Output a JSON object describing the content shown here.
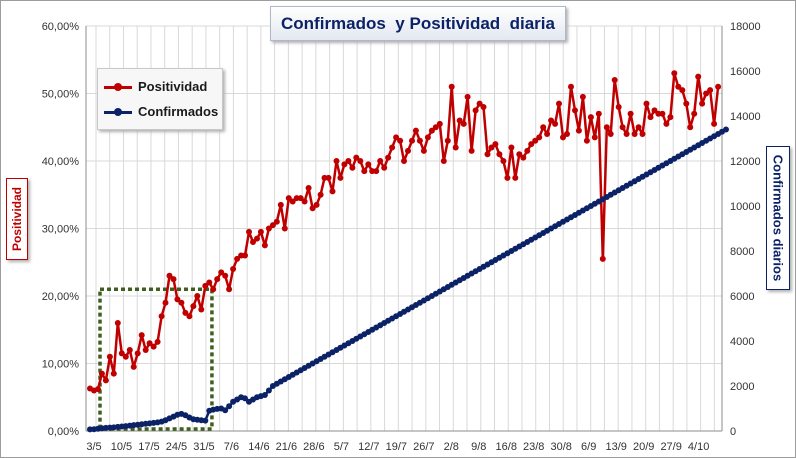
{
  "chart_data": {
    "type": "line",
    "title": "Confirmados  y Positividad  diaria",
    "ylabel_left": "Positividad",
    "ylabel_right": "Confirmados diarios",
    "xlabel": "",
    "legend_position": "top-left",
    "grid": true,
    "x_ticks": [
      "3/5",
      "10/5",
      "17/5",
      "24/5",
      "31/5",
      "7/6",
      "14/6",
      "21/6",
      "28/6",
      "5/7",
      "12/7",
      "19/7",
      "26/7",
      "2/8",
      "9/8",
      "16/8",
      "23/8",
      "30/8",
      "6/9",
      "13/9",
      "20/9",
      "27/9",
      "4/10"
    ],
    "y_left_ticks": [
      "0,00%",
      "10,00%",
      "20,00%",
      "30,00%",
      "40,00%",
      "50,00%",
      "60,00%"
    ],
    "y_right_ticks": [
      "0",
      "2000",
      "4000",
      "6000",
      "8000",
      "10000",
      "12000",
      "14000",
      "16000",
      "18000"
    ],
    "ylim_left": [
      0,
      60
    ],
    "ylim_right": [
      0,
      18000
    ],
    "x_start_date": "2020-05-03",
    "x_interval_days": 7,
    "annotation": "dotted green rectangle highlighting 3/5 to 31/5",
    "series": [
      {
        "name": "Positividad",
        "axis": "left",
        "color": "#c00000",
        "values": [
          6.3,
          6.0,
          6.2,
          8.5,
          7.5,
          11.0,
          8.5,
          16.0,
          11.5,
          11.0,
          12.0,
          9.5,
          11.5,
          14.2,
          12.0,
          13.0,
          12.5,
          13.2,
          17.0,
          19.0,
          23.0,
          22.5,
          19.5,
          19.0,
          17.5,
          17.0,
          18.5,
          20.0,
          18.0,
          21.5,
          22.0,
          21.0,
          22.5,
          23.5,
          23.0,
          21.0,
          24.0,
          25.5,
          26.0,
          26.0,
          29.5,
          28.0,
          28.5,
          29.5,
          27.5,
          30.0,
          30.5,
          31.0,
          33.5,
          30.0,
          34.5,
          34.0,
          34.5,
          34.5,
          34.0,
          36.0,
          33.0,
          33.5,
          35.0,
          37.5,
          37.5,
          35.5,
          40.0,
          37.5,
          39.5,
          40.0,
          39.0,
          40.5,
          40.0,
          38.5,
          39.5,
          38.5,
          38.5,
          40.0,
          39.0,
          40.5,
          42.0,
          43.5,
          43.0,
          40.0,
          41.5,
          43.0,
          44.5,
          43.0,
          41.5,
          43.5,
          44.5,
          45.0,
          45.5,
          40.0,
          43.0,
          51.0,
          42.0,
          46.0,
          45.5,
          49.5,
          41.5,
          47.5,
          48.5,
          48.0,
          41.0,
          42.0,
          42.5,
          41.0,
          40.0,
          37.5,
          42.0,
          37.5,
          41.0,
          40.5,
          41.5,
          42.5,
          43.0,
          43.5,
          45.0,
          44.0,
          46.0,
          45.5,
          48.5,
          43.5,
          44.0,
          51.0,
          47.5,
          44.5,
          49.5,
          43.0,
          46.5,
          43.5,
          47.0,
          25.5,
          45.0,
          44.0,
          52.0,
          48.0,
          45.0,
          44.0,
          47.0,
          44.0,
          45.0,
          44.0,
          48.5,
          46.5,
          47.5,
          47.0,
          47.0,
          45.5,
          46.5,
          53.0,
          51.0,
          50.5,
          48.5,
          45.0,
          47.0,
          52.5,
          48.5,
          50.0,
          50.5,
          45.5,
          51.0
        ]
      },
      {
        "name": "Confirmados",
        "axis": "right",
        "color": "#0c2266",
        "values": [
          70,
          80,
          100,
          120,
          140,
          150,
          160,
          180,
          200,
          220,
          240,
          260,
          280,
          300,
          320,
          340,
          360,
          380,
          420,
          480,
          560,
          640,
          720,
          760,
          700,
          600,
          520,
          500,
          480,
          460,
          900,
          950,
          980,
          1000,
          920,
          1100,
          1300,
          1400,
          1500,
          1450,
          1300,
          1400,
          1500,
          1550,
          1600,
          1800,
          2000,
          2100,
          2200,
          2300,
          2400,
          2500,
          2600,
          2700,
          2800,
          2900,
          3000,
          3100,
          3200,
          3300,
          3400,
          3500,
          3600,
          3700,
          3800,
          3900,
          4000,
          4100,
          4200,
          4300,
          4400,
          4500,
          4600,
          4700,
          4800,
          4900,
          5000,
          5100,
          5200,
          5300,
          5400,
          5500,
          5600,
          5700,
          5800,
          5900,
          6000,
          6100,
          6200,
          6300,
          6400,
          6500,
          6600,
          6700,
          6800,
          6900,
          7000,
          7100,
          7200,
          7300,
          7400,
          7500,
          7600,
          7700,
          7800,
          7900,
          8000,
          8100,
          8200,
          8300,
          8400,
          8500,
          8600,
          8700,
          8800,
          8900,
          9000,
          9100,
          9200,
          9300,
          9400,
          9500,
          9600,
          9700,
          9800,
          9900,
          10000,
          10100,
          10200,
          10300,
          10400,
          10500,
          10600,
          10700,
          10800,
          10900,
          11000,
          11100,
          11200,
          11300,
          11400,
          11500,
          11600,
          11700,
          11800,
          11900,
          12000,
          12100,
          12200,
          12300,
          12400,
          12500,
          12600,
          12700,
          12800,
          12900,
          13000,
          13100,
          13200,
          13300,
          13400
        ]
      }
    ]
  }
}
